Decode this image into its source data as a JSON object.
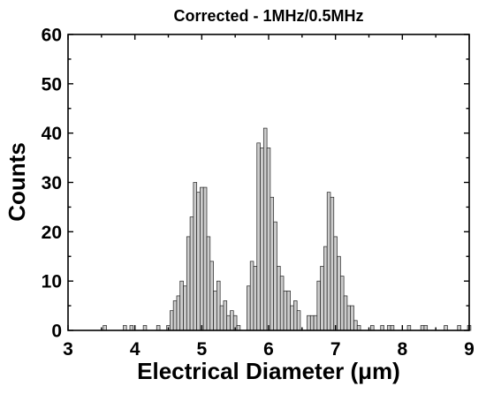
{
  "chart_data": {
    "type": "bar",
    "title": "Corrected - 1MHz/0.5MHz",
    "xlabel": "Electrical Diameter (μm)",
    "ylabel": "Counts",
    "xlim": [
      3,
      9
    ],
    "ylim": [
      0,
      60
    ],
    "xticks": [
      "3",
      "4",
      "5",
      "6",
      "7",
      "8",
      "9"
    ],
    "yticks": [
      "0",
      "10",
      "20",
      "30",
      "40",
      "50",
      "60"
    ],
    "bin_width": 0.05,
    "colors": {
      "bar_fill": "#cccccc",
      "bar_edge": "#222222"
    },
    "bins": [
      {
        "x": 3.55,
        "count": 1
      },
      {
        "x": 3.85,
        "count": 1
      },
      {
        "x": 3.95,
        "count": 1
      },
      {
        "x": 4.15,
        "count": 1
      },
      {
        "x": 4.35,
        "count": 1
      },
      {
        "x": 4.5,
        "count": 1
      },
      {
        "x": 4.55,
        "count": 4
      },
      {
        "x": 4.6,
        "count": 6
      },
      {
        "x": 4.65,
        "count": 7
      },
      {
        "x": 4.7,
        "count": 10
      },
      {
        "x": 4.75,
        "count": 9
      },
      {
        "x": 4.8,
        "count": 19
      },
      {
        "x": 4.85,
        "count": 23
      },
      {
        "x": 4.9,
        "count": 30
      },
      {
        "x": 4.95,
        "count": 28
      },
      {
        "x": 5.0,
        "count": 29
      },
      {
        "x": 5.05,
        "count": 29
      },
      {
        "x": 5.1,
        "count": 19
      },
      {
        "x": 5.15,
        "count": 14
      },
      {
        "x": 5.2,
        "count": 8
      },
      {
        "x": 5.25,
        "count": 10
      },
      {
        "x": 5.3,
        "count": 5
      },
      {
        "x": 5.35,
        "count": 6
      },
      {
        "x": 5.4,
        "count": 3
      },
      {
        "x": 5.45,
        "count": 4
      },
      {
        "x": 5.5,
        "count": 3
      },
      {
        "x": 5.55,
        "count": 1
      },
      {
        "x": 5.7,
        "count": 9
      },
      {
        "x": 5.75,
        "count": 14
      },
      {
        "x": 5.8,
        "count": 13
      },
      {
        "x": 5.85,
        "count": 38
      },
      {
        "x": 5.9,
        "count": 37
      },
      {
        "x": 5.95,
        "count": 41
      },
      {
        "x": 6.0,
        "count": 37
      },
      {
        "x": 6.05,
        "count": 27
      },
      {
        "x": 6.1,
        "count": 22
      },
      {
        "x": 6.15,
        "count": 13
      },
      {
        "x": 6.2,
        "count": 11
      },
      {
        "x": 6.25,
        "count": 8
      },
      {
        "x": 6.3,
        "count": 8
      },
      {
        "x": 6.35,
        "count": 5
      },
      {
        "x": 6.4,
        "count": 6
      },
      {
        "x": 6.45,
        "count": 4
      },
      {
        "x": 6.6,
        "count": 3
      },
      {
        "x": 6.65,
        "count": 3
      },
      {
        "x": 6.7,
        "count": 3
      },
      {
        "x": 6.75,
        "count": 10
      },
      {
        "x": 6.8,
        "count": 13
      },
      {
        "x": 6.85,
        "count": 17
      },
      {
        "x": 6.9,
        "count": 28
      },
      {
        "x": 6.95,
        "count": 27
      },
      {
        "x": 7.0,
        "count": 19
      },
      {
        "x": 7.05,
        "count": 15
      },
      {
        "x": 7.1,
        "count": 11
      },
      {
        "x": 7.15,
        "count": 7
      },
      {
        "x": 7.2,
        "count": 5
      },
      {
        "x": 7.25,
        "count": 5
      },
      {
        "x": 7.3,
        "count": 2
      },
      {
        "x": 7.35,
        "count": 1
      },
      {
        "x": 7.55,
        "count": 1
      },
      {
        "x": 7.7,
        "count": 1
      },
      {
        "x": 7.8,
        "count": 1
      },
      {
        "x": 7.85,
        "count": 1
      },
      {
        "x": 8.1,
        "count": 1
      },
      {
        "x": 8.3,
        "count": 1
      },
      {
        "x": 8.35,
        "count": 1
      },
      {
        "x": 8.65,
        "count": 1
      },
      {
        "x": 8.85,
        "count": 1
      },
      {
        "x": 9.0,
        "count": 1
      }
    ]
  }
}
